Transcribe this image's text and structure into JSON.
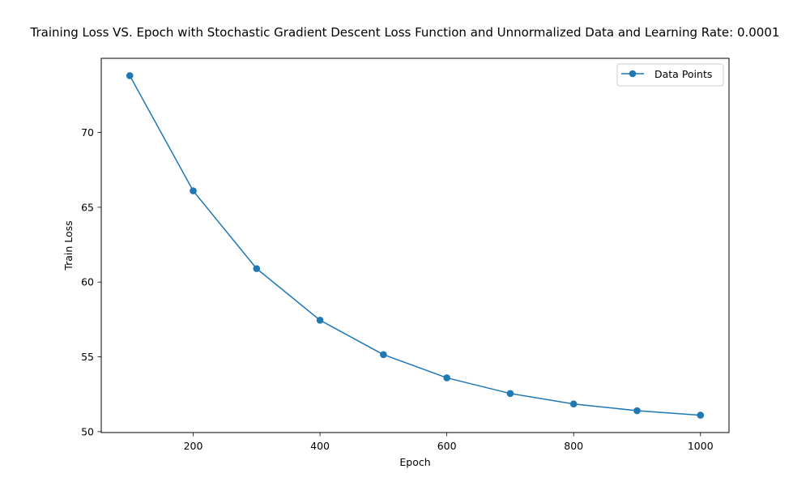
{
  "chart_data": {
    "type": "line",
    "title": "Training Loss VS. Epoch with Stochastic Gradient Descent Loss Function and Unnormalized Data and Learning Rate: 0.0001",
    "xlabel": "Epoch",
    "ylabel": "Train Loss",
    "x": [
      100,
      200,
      300,
      400,
      500,
      600,
      700,
      800,
      900,
      1000
    ],
    "series": [
      {
        "name": "Data Points",
        "values": [
          73.8,
          66.1,
          60.9,
          57.45,
          55.15,
          53.6,
          52.55,
          51.85,
          51.4,
          51.1
        ],
        "color": "#1f77b4",
        "marker": "circle"
      }
    ],
    "xlim": [
      55,
      1045
    ],
    "ylim": [
      49.94,
      74.96
    ],
    "xticks": [
      200,
      400,
      600,
      800,
      1000
    ],
    "yticks": [
      50,
      55,
      60,
      65,
      70
    ],
    "grid": false,
    "legend": "upper right"
  }
}
